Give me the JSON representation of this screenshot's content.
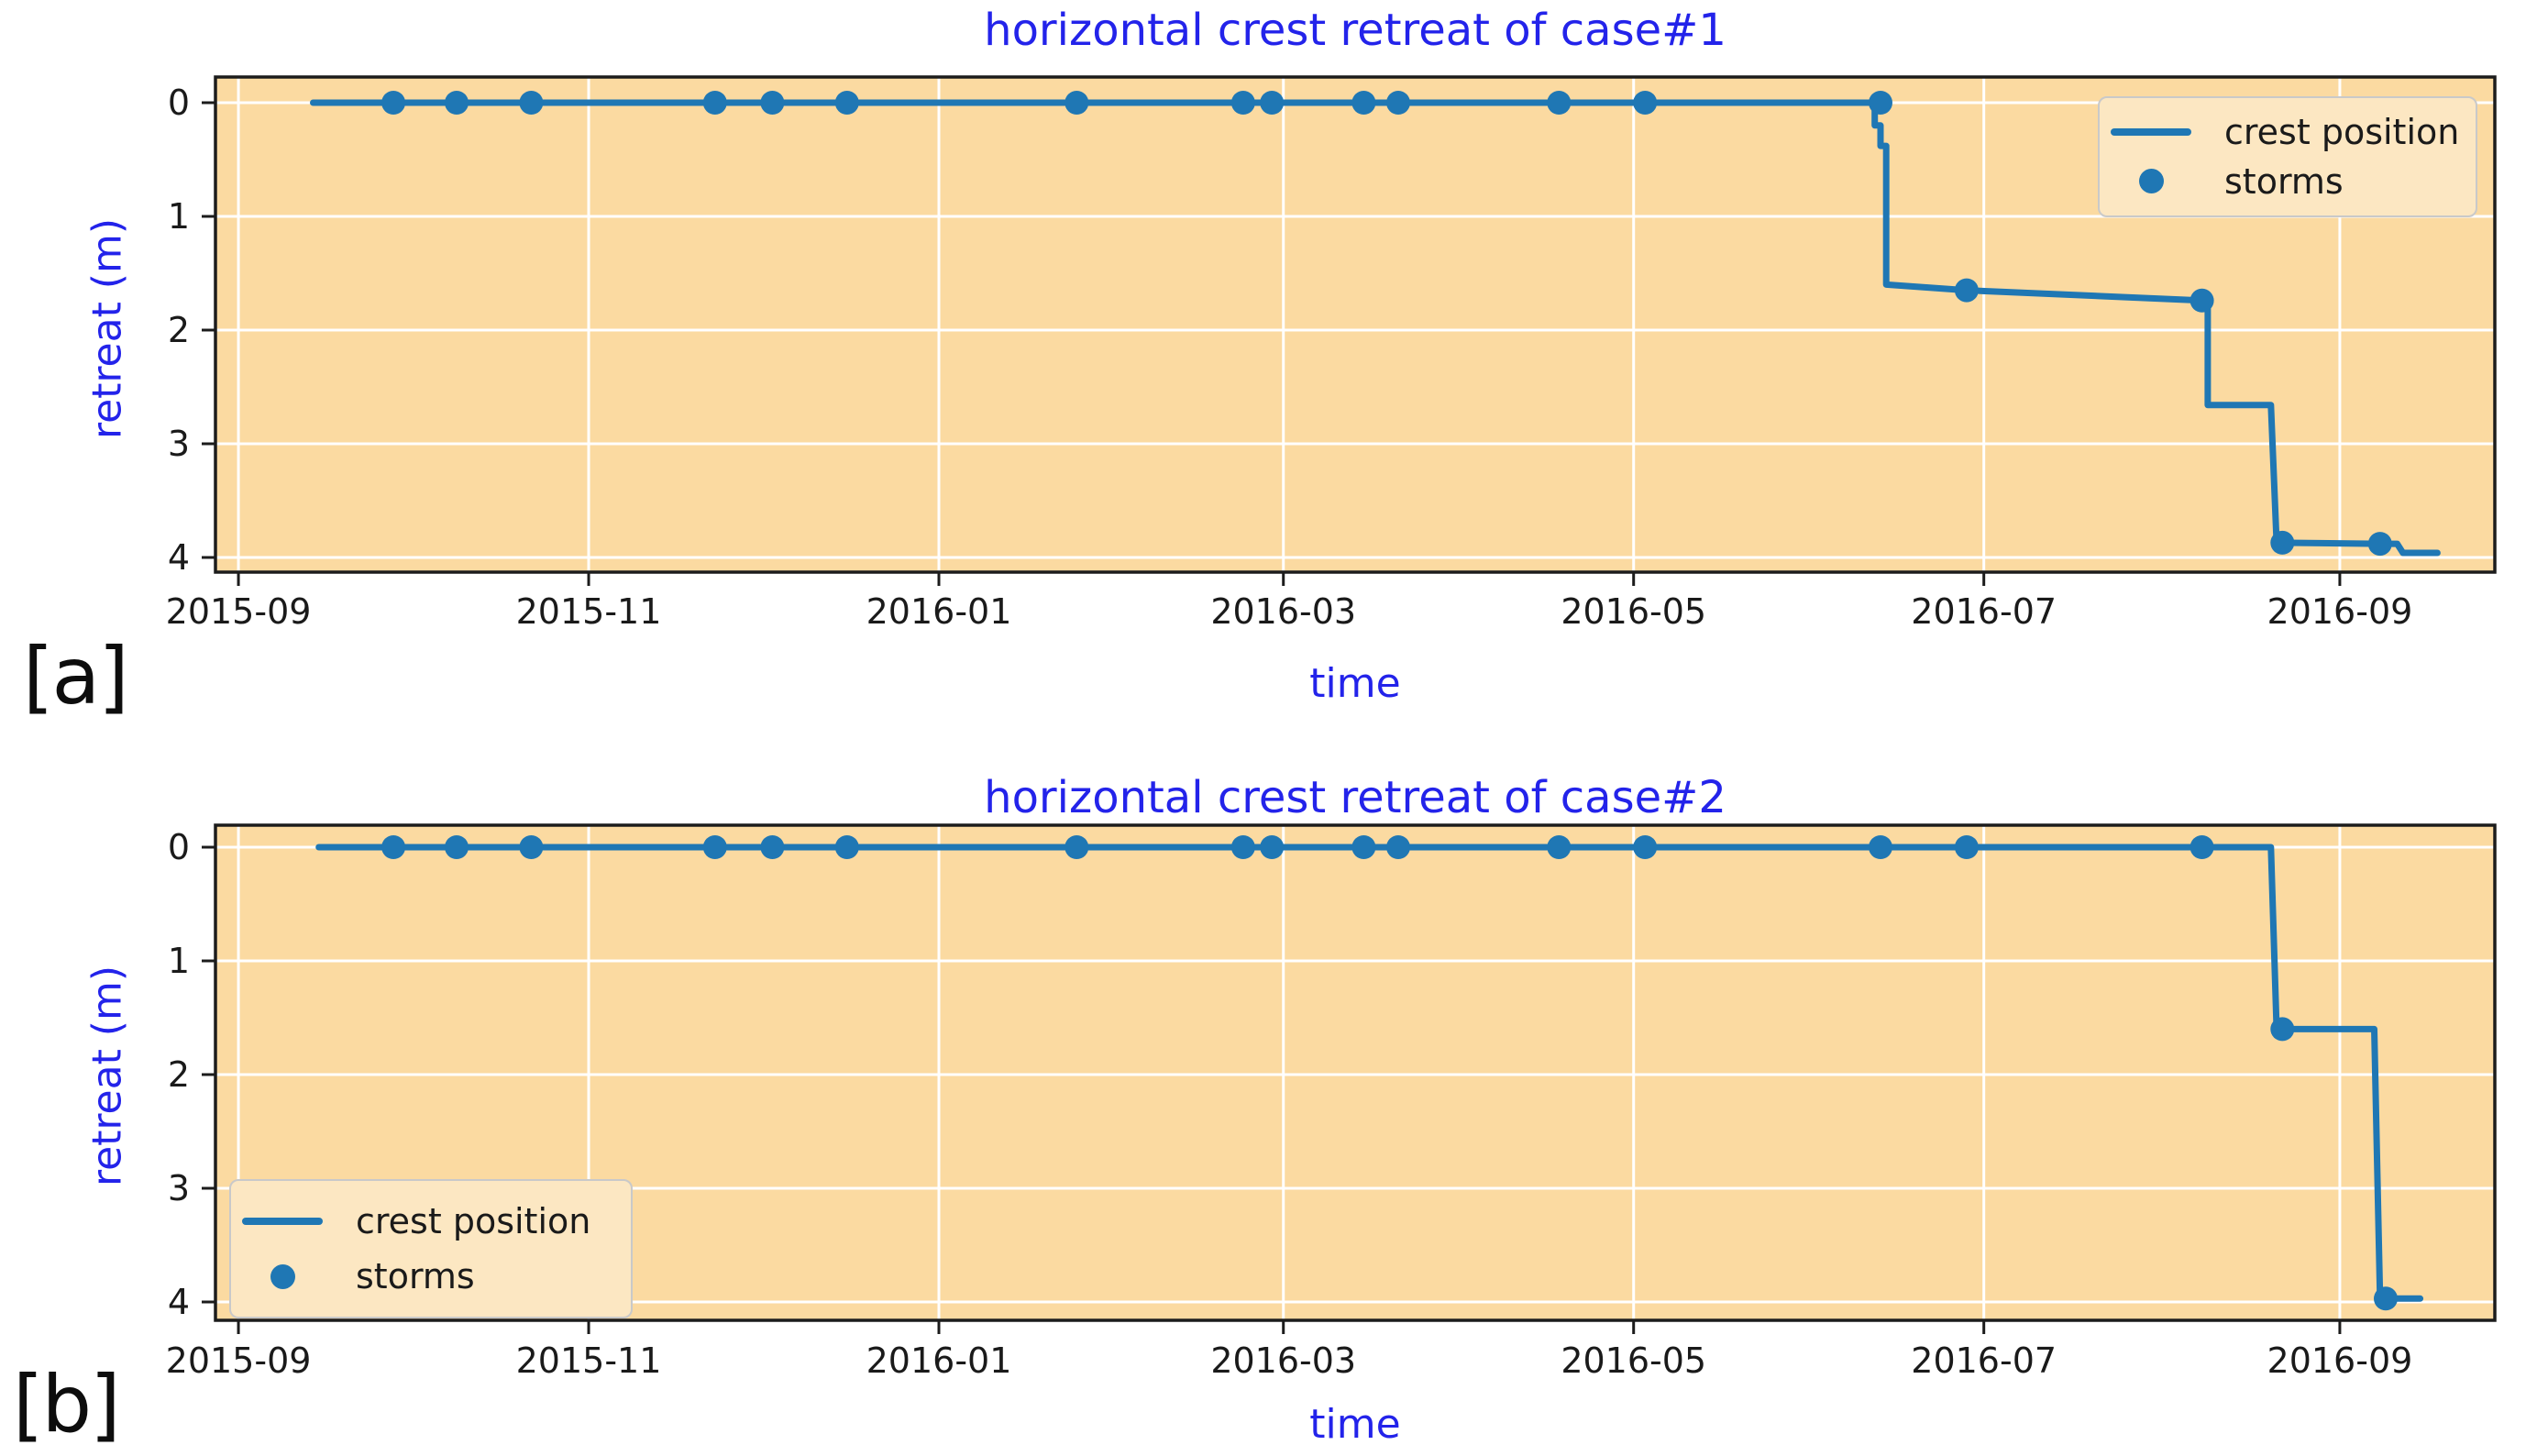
{
  "colors": {
    "accent": "#1f77b4",
    "plot_bg": "#fbdaa1",
    "grid": "#ffffff",
    "spine": "#1c1c1c",
    "tick_text": "#1a1a1a",
    "label_blue": "#2323ea",
    "legend_bg": "#fce7c2",
    "legend_border": "#c9c9c9"
  },
  "panels": [
    {
      "label": "[a]"
    },
    {
      "label": "[b]"
    }
  ],
  "chart_data": [
    {
      "type": "line",
      "title": "horizontal crest retreat of case#1",
      "xlabel": "time",
      "ylabel": "retreat (m)",
      "legend": [
        "crest position",
        "storms"
      ],
      "legend_position": "upper right",
      "grid": true,
      "y_axis_inverted": true,
      "ylim": [
        -0.25,
        4.1
      ],
      "x_tick_dates": [
        "2015-09-01",
        "2015-11-01",
        "2016-01-01",
        "2016-03-01",
        "2016-05-01",
        "2016-07-01",
        "2016-09-01"
      ],
      "x_tick_labels": [
        "2015-09",
        "2015-11",
        "2016-01",
        "2016-03",
        "2016-05",
        "2016-07",
        "2016-09"
      ],
      "y_ticks": [
        0,
        1,
        2,
        3,
        4
      ],
      "y_tick_labels": [
        "0",
        "1",
        "2",
        "3",
        "4"
      ],
      "xrange": [
        "2015-08-28",
        "2016-09-28"
      ],
      "series": [
        {
          "name": "crest position",
          "kind": "step-line",
          "points": [
            [
              "2015-09-14",
              0
            ],
            [
              "2016-06-12",
              0
            ],
            [
              "2016-06-12",
              0.2
            ],
            [
              "2016-06-13",
              0.2
            ],
            [
              "2016-06-13",
              0.38
            ],
            [
              "2016-06-14",
              0.38
            ],
            [
              "2016-06-14",
              1.6
            ],
            [
              "2016-06-28",
              1.65
            ],
            [
              "2016-08-08",
              1.74
            ],
            [
              "2016-08-09",
              1.74
            ],
            [
              "2016-08-09",
              2.66
            ],
            [
              "2016-08-20",
              2.66
            ],
            [
              "2016-08-21",
              3.87
            ],
            [
              "2016-09-08",
              3.88
            ],
            [
              "2016-09-11",
              3.88
            ],
            [
              "2016-09-12",
              3.96
            ],
            [
              "2016-09-18",
              3.96
            ]
          ]
        },
        {
          "name": "storms",
          "kind": "scatter",
          "points": [
            [
              "2015-09-28",
              0
            ],
            [
              "2015-10-09",
              0
            ],
            [
              "2015-10-22",
              0
            ],
            [
              "2015-11-23",
              0
            ],
            [
              "2015-12-03",
              0
            ],
            [
              "2015-12-16",
              0
            ],
            [
              "2016-01-25",
              0
            ],
            [
              "2016-02-23",
              0
            ],
            [
              "2016-02-28",
              0
            ],
            [
              "2016-03-15",
              0
            ],
            [
              "2016-03-21",
              0
            ],
            [
              "2016-04-18",
              0
            ],
            [
              "2016-05-03",
              0
            ],
            [
              "2016-06-13",
              0
            ],
            [
              "2016-06-28",
              1.65
            ],
            [
              "2016-08-08",
              1.74
            ],
            [
              "2016-08-22",
              3.87
            ],
            [
              "2016-09-08",
              3.88
            ]
          ]
        }
      ]
    },
    {
      "type": "line",
      "title": "horizontal crest retreat of case#2",
      "xlabel": "time",
      "ylabel": "retreat (m)",
      "legend": [
        "crest position",
        "storms"
      ],
      "legend_position": "lower left",
      "grid": true,
      "y_axis_inverted": true,
      "ylim": [
        -0.25,
        4.15
      ],
      "x_tick_dates": [
        "2015-09-01",
        "2015-11-01",
        "2016-01-01",
        "2016-03-01",
        "2016-05-01",
        "2016-07-01",
        "2016-09-01"
      ],
      "x_tick_labels": [
        "2015-09",
        "2015-11",
        "2016-01",
        "2016-03",
        "2016-05",
        "2016-07",
        "2016-09"
      ],
      "y_ticks": [
        0,
        1,
        2,
        3,
        4
      ],
      "y_tick_labels": [
        "0",
        "1",
        "2",
        "3",
        "4"
      ],
      "xrange": [
        "2015-08-28",
        "2016-09-28"
      ],
      "series": [
        {
          "name": "crest position",
          "kind": "step-line",
          "points": [
            [
              "2015-09-15",
              0
            ],
            [
              "2016-08-20",
              0
            ],
            [
              "2016-08-21",
              1.6
            ],
            [
              "2016-09-07",
              1.6
            ],
            [
              "2016-09-08",
              3.97
            ],
            [
              "2016-09-15",
              3.97
            ]
          ]
        },
        {
          "name": "storms",
          "kind": "scatter",
          "points": [
            [
              "2015-09-28",
              0
            ],
            [
              "2015-10-09",
              0
            ],
            [
              "2015-10-22",
              0
            ],
            [
              "2015-11-23",
              0
            ],
            [
              "2015-12-03",
              0
            ],
            [
              "2015-12-16",
              0
            ],
            [
              "2016-01-25",
              0
            ],
            [
              "2016-02-23",
              0
            ],
            [
              "2016-02-28",
              0
            ],
            [
              "2016-03-15",
              0
            ],
            [
              "2016-03-21",
              0
            ],
            [
              "2016-04-18",
              0
            ],
            [
              "2016-05-03",
              0
            ],
            [
              "2016-06-13",
              0
            ],
            [
              "2016-06-28",
              0
            ],
            [
              "2016-08-08",
              0
            ],
            [
              "2016-08-22",
              1.6
            ],
            [
              "2016-09-09",
              3.97
            ]
          ]
        }
      ]
    }
  ]
}
